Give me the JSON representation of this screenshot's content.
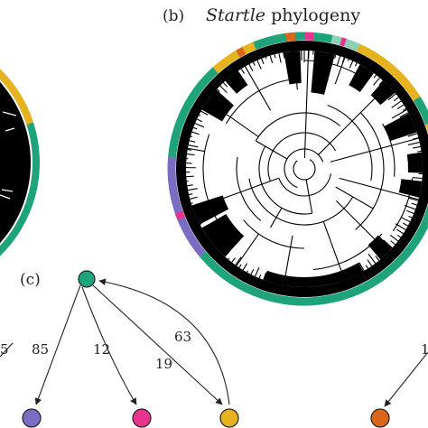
{
  "panel_b": {
    "letter": "(b)",
    "title_italic": "Startle",
    "title_rest": " phylogeny"
  },
  "panel_c": {
    "letter": "(c)"
  },
  "graph": {
    "edges": [
      {
        "label": "5",
        "color": "#222222"
      },
      {
        "label": "85",
        "color": "#222222"
      },
      {
        "label": "12",
        "color": "#222222"
      },
      {
        "label": "19",
        "color": "#222222"
      },
      {
        "label": "63",
        "color": "#222222"
      },
      {
        "label": "1",
        "color": "#222222"
      }
    ],
    "nodes": [
      {
        "name": "root",
        "color": "#1fa37b"
      },
      {
        "name": "purple-leaf",
        "color": "#7b6cc4"
      },
      {
        "name": "magenta-leaf",
        "color": "#e8338f"
      },
      {
        "name": "yellow-leaf",
        "color": "#e6b21e"
      },
      {
        "name": "orange-leaf",
        "color": "#d9661a"
      }
    ]
  },
  "colors": {
    "ring_teal": "#1fa37b",
    "ring_yellow": "#e6b21e",
    "ring_purple": "#7b6cc4",
    "ring_magenta": "#e8338f",
    "ring_orange": "#d9661a",
    "tree": "#000000"
  }
}
